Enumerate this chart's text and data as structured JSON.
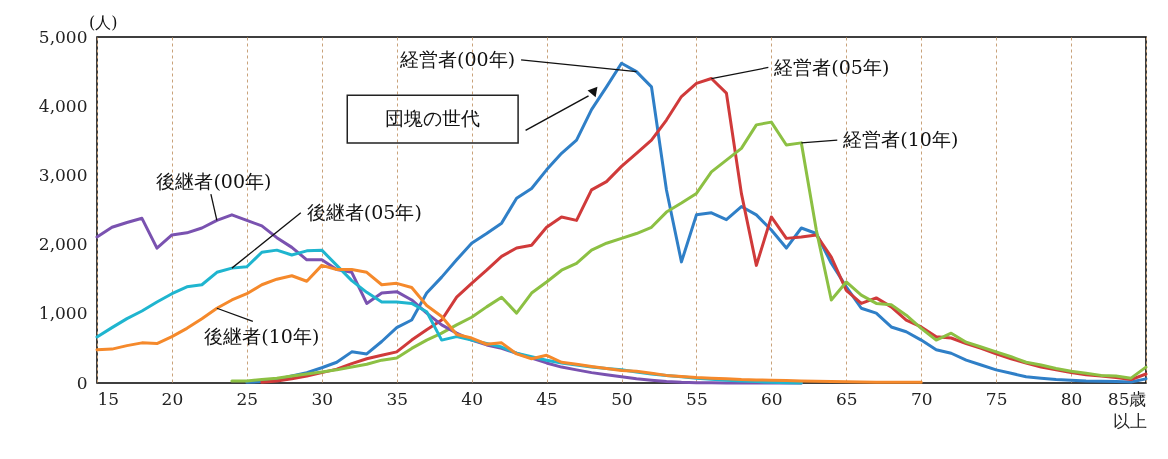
{
  "chart_data": {
    "type": "line",
    "ylabel": "(人)",
    "xlim": [
      15,
      85
    ],
    "ylim": [
      0,
      5000
    ],
    "xticks": [
      15,
      20,
      25,
      30,
      35,
      40,
      45,
      50,
      55,
      60,
      65,
      70,
      75,
      80,
      {
        "value": 85,
        "label": "85歳以上"
      }
    ],
    "yticks": [
      0,
      {
        "value": 1000,
        "label": "1,000"
      },
      {
        "value": 2000,
        "label": "2,000"
      },
      {
        "value": 3000,
        "label": "3,000"
      },
      {
        "value": 4000,
        "label": "4,000"
      },
      {
        "value": 5000,
        "label": "5,000"
      }
    ],
    "grid": "x",
    "marker": "none",
    "line_style": "solid",
    "annotations": [
      "団塊の世代"
    ],
    "series": [
      {
        "name": "経営者(00年)",
        "color": "#2f7fc7",
        "x": [
          25,
          26,
          27,
          28,
          29,
          30,
          31,
          32,
          33,
          34,
          35,
          36,
          37,
          38,
          39,
          40,
          41,
          42,
          43,
          44,
          45,
          46,
          47,
          48,
          49,
          50,
          51,
          52,
          53,
          54,
          55,
          56,
          57,
          58,
          59,
          60,
          61,
          62,
          63,
          64,
          65,
          66,
          67,
          68,
          69,
          70,
          71,
          72,
          73,
          74,
          75,
          76,
          77,
          78,
          79,
          80,
          81,
          82,
          83,
          84,
          85
        ],
        "values": [
          10,
          20,
          50,
          100,
          150,
          220,
          300,
          450,
          420,
          600,
          800,
          910,
          1300,
          1530,
          1780,
          2020,
          2160,
          2310,
          2670,
          2810,
          3080,
          3320,
          3510,
          3950,
          4280,
          4620,
          4500,
          4280,
          2790,
          1750,
          2430,
          2460,
          2360,
          2550,
          2430,
          2210,
          1950,
          2240,
          2160,
          1730,
          1390,
          1080,
          1010,
          810,
          740,
          620,
          480,
          430,
          330,
          260,
          190,
          140,
          90,
          70,
          50,
          40,
          30,
          25,
          20,
          15,
          60
        ]
      },
      {
        "name": "経営者(05年)",
        "color": "#d03a3a",
        "x": [
          26,
          27,
          28,
          29,
          30,
          31,
          32,
          33,
          34,
          35,
          36,
          37,
          38,
          39,
          40,
          41,
          42,
          43,
          44,
          45,
          46,
          47,
          48,
          49,
          50,
          51,
          52,
          53,
          54,
          55,
          56,
          57,
          58,
          59,
          60,
          61,
          62,
          63,
          64,
          65,
          66,
          67,
          68,
          69,
          70,
          71,
          72,
          73,
          74,
          75,
          76,
          77,
          78,
          79,
          80,
          81,
          82,
          83,
          84,
          85
        ],
        "values": [
          10,
          30,
          60,
          100,
          150,
          200,
          280,
          350,
          400,
          450,
          620,
          770,
          910,
          1240,
          1440,
          1630,
          1830,
          1950,
          1990,
          2250,
          2400,
          2350,
          2790,
          2910,
          3130,
          3320,
          3510,
          3800,
          4140,
          4330,
          4400,
          4190,
          2740,
          1700,
          2400,
          2090,
          2110,
          2140,
          1820,
          1340,
          1150,
          1230,
          1100,
          910,
          810,
          670,
          650,
          570,
          500,
          420,
          350,
          290,
          230,
          190,
          150,
          120,
          100,
          80,
          50,
          130
        ]
      },
      {
        "name": "経営者(10年)",
        "color": "#8cc043",
        "x": [
          24,
          25,
          26,
          27,
          28,
          29,
          30,
          31,
          32,
          33,
          34,
          35,
          36,
          37,
          38,
          39,
          40,
          41,
          42,
          43,
          44,
          45,
          46,
          47,
          48,
          49,
          50,
          51,
          52,
          53,
          54,
          55,
          56,
          57,
          58,
          59,
          60,
          61,
          62,
          63,
          64,
          65,
          66,
          67,
          68,
          69,
          70,
          71,
          72,
          73,
          74,
          75,
          76,
          77,
          78,
          79,
          80,
          81,
          82,
          83,
          84,
          85
        ],
        "values": [
          30,
          30,
          50,
          70,
          100,
          130,
          160,
          190,
          230,
          270,
          330,
          360,
          500,
          620,
          720,
          840,
          950,
          1100,
          1240,
          1010,
          1300,
          1460,
          1630,
          1730,
          1920,
          2020,
          2090,
          2160,
          2250,
          2470,
          2600,
          2740,
          3050,
          3220,
          3390,
          3730,
          3770,
          3440,
          3470,
          2210,
          1200,
          1460,
          1270,
          1150,
          1130,
          980,
          790,
          620,
          720,
          590,
          520,
          450,
          380,
          300,
          260,
          210,
          170,
          140,
          110,
          100,
          70,
          230
        ]
      },
      {
        "name": "後継者(00年)",
        "color": "#7a52b0",
        "x": [
          15,
          16,
          17,
          18,
          19,
          20,
          21,
          22,
          23,
          24,
          25,
          26,
          27,
          28,
          29,
          30,
          31,
          32,
          33,
          34,
          35,
          36,
          37,
          38,
          39,
          40,
          41,
          42,
          43,
          44,
          45,
          46,
          47,
          48,
          49,
          50,
          51,
          52,
          53,
          54,
          55,
          56,
          57,
          58,
          59,
          60,
          61,
          62
        ],
        "values": [
          2110,
          2250,
          2320,
          2380,
          1950,
          2140,
          2170,
          2240,
          2350,
          2430,
          2350,
          2270,
          2100,
          1960,
          1780,
          1780,
          1640,
          1600,
          1150,
          1300,
          1320,
          1200,
          1010,
          840,
          720,
          620,
          550,
          500,
          430,
          360,
          290,
          230,
          190,
          150,
          120,
          90,
          60,
          40,
          20,
          10,
          5,
          5,
          0,
          0,
          0,
          0,
          0,
          0
        ]
      },
      {
        "name": "後継者(05年)",
        "color": "#1fb5cf",
        "x": [
          15,
          16,
          17,
          18,
          19,
          20,
          21,
          22,
          23,
          24,
          25,
          26,
          27,
          28,
          29,
          30,
          31,
          32,
          33,
          34,
          35,
          36,
          37,
          38,
          39,
          40,
          41,
          42,
          43,
          44,
          45,
          46,
          47,
          48,
          49,
          50,
          51,
          52,
          53,
          54,
          55,
          56,
          57,
          58,
          59,
          60,
          61,
          62
        ],
        "values": [
          665,
          800,
          930,
          1040,
          1170,
          1290,
          1390,
          1420,
          1600,
          1660,
          1680,
          1890,
          1920,
          1850,
          1910,
          1920,
          1700,
          1480,
          1310,
          1170,
          1170,
          1150,
          1030,
          620,
          670,
          620,
          570,
          520,
          430,
          380,
          330,
          290,
          260,
          230,
          210,
          190,
          160,
          130,
          110,
          90,
          70,
          55,
          40,
          30,
          20,
          10,
          5,
          0
        ]
      },
      {
        "name": "後継者(10年)",
        "color": "#f5892b",
        "x": [
          15,
          16,
          17,
          18,
          19,
          20,
          21,
          22,
          23,
          24,
          25,
          26,
          27,
          28,
          29,
          30,
          31,
          32,
          33,
          34,
          35,
          36,
          37,
          38,
          39,
          40,
          41,
          42,
          43,
          44,
          45,
          46,
          47,
          48,
          49,
          50,
          51,
          52,
          53,
          54,
          55,
          56,
          57,
          58,
          59,
          60,
          61,
          62,
          63,
          64,
          65,
          66,
          67,
          68,
          69,
          70
        ],
        "values": [
          480,
          490,
          540,
          580,
          570,
          670,
          790,
          930,
          1080,
          1200,
          1290,
          1420,
          1500,
          1550,
          1470,
          1700,
          1640,
          1640,
          1600,
          1420,
          1440,
          1380,
          1120,
          960,
          700,
          650,
          560,
          580,
          420,
          350,
          400,
          300,
          270,
          240,
          210,
          180,
          170,
          140,
          110,
          95,
          80,
          70,
          60,
          50,
          45,
          40,
          35,
          30,
          25,
          20,
          18,
          15,
          12,
          10,
          10,
          10
        ]
      }
    ]
  }
}
